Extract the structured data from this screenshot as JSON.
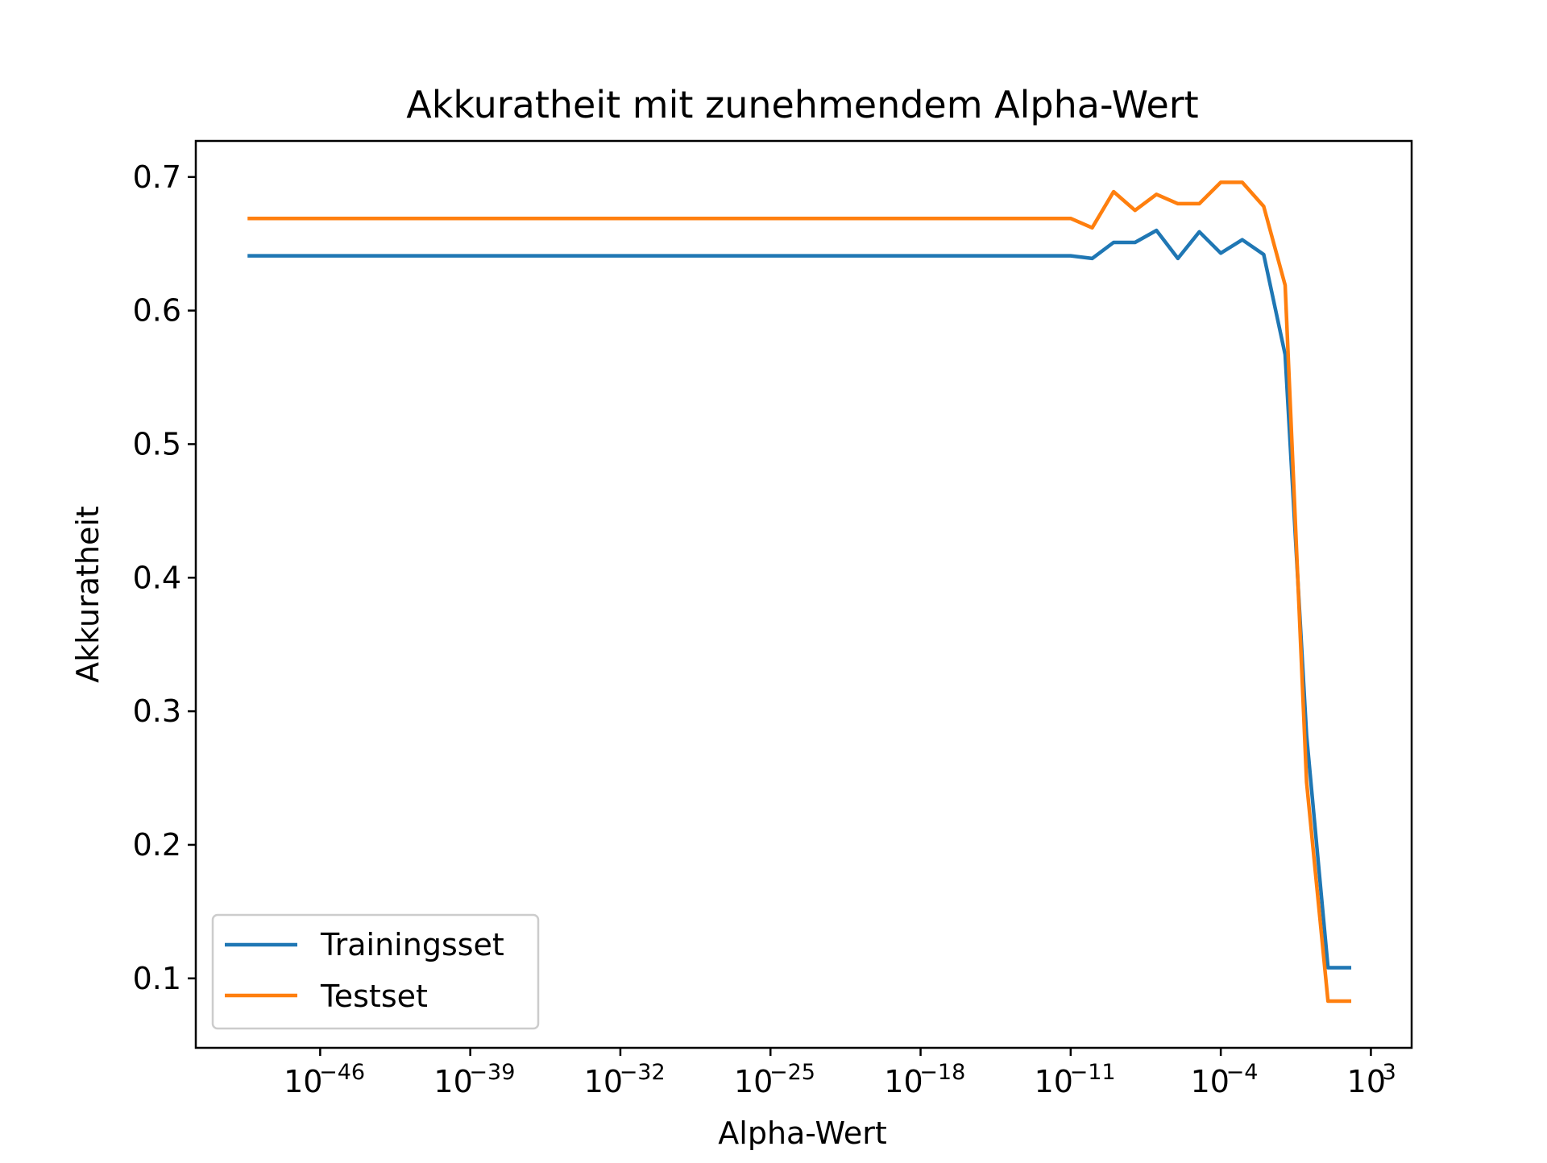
{
  "chart_data": {
    "type": "line",
    "title": "Akkuratheit mit zunehmendem Alpha-Wert",
    "xlabel": "Alpha-Wert",
    "ylabel": "Akkuratheit",
    "xscale": "log",
    "xlim_exponent": [
      -51.8,
      4.9
    ],
    "ylim": [
      0.048,
      0.727
    ],
    "xticks": [
      {
        "exponent": -46,
        "label_base": "10",
        "label_exp": "−46"
      },
      {
        "exponent": -39,
        "label_base": "10",
        "label_exp": "−39"
      },
      {
        "exponent": -32,
        "label_base": "10",
        "label_exp": "−32"
      },
      {
        "exponent": -25,
        "label_base": "10",
        "label_exp": "−25"
      },
      {
        "exponent": -18,
        "label_base": "10",
        "label_exp": "−18"
      },
      {
        "exponent": -11,
        "label_base": "10",
        "label_exp": "−11"
      },
      {
        "exponent": -4,
        "label_base": "10",
        "label_exp": "−4"
      },
      {
        "exponent": 3,
        "label_base": "10",
        "label_exp": "3"
      }
    ],
    "yticks": [
      {
        "value": 0.1,
        "label": "0.1"
      },
      {
        "value": 0.2,
        "label": "0.2"
      },
      {
        "value": 0.3,
        "label": "0.3"
      },
      {
        "value": 0.4,
        "label": "0.4"
      },
      {
        "value": 0.5,
        "label": "0.5"
      },
      {
        "value": 0.6,
        "label": "0.6"
      },
      {
        "value": 0.7,
        "label": "0.7"
      }
    ],
    "legend_position": "lower-left",
    "grid": false,
    "series": [
      {
        "name": "Trainingsset",
        "color": "#1f77b4",
        "points": [
          {
            "log10_alpha": -49.3,
            "y": 0.641
          },
          {
            "log10_alpha": -11.0,
            "y": 0.641
          },
          {
            "log10_alpha": -10.0,
            "y": 0.639
          },
          {
            "log10_alpha": -9.0,
            "y": 0.651
          },
          {
            "log10_alpha": -8.0,
            "y": 0.651
          },
          {
            "log10_alpha": -7.0,
            "y": 0.66
          },
          {
            "log10_alpha": -6.0,
            "y": 0.639
          },
          {
            "log10_alpha": -5.0,
            "y": 0.659
          },
          {
            "log10_alpha": -4.0,
            "y": 0.643
          },
          {
            "log10_alpha": -3.0,
            "y": 0.653
          },
          {
            "log10_alpha": -2.0,
            "y": 0.642
          },
          {
            "log10_alpha": -1.0,
            "y": 0.567
          },
          {
            "log10_alpha": 0.0,
            "y": 0.282
          },
          {
            "log10_alpha": 1.0,
            "y": 0.108
          },
          {
            "log10_alpha": 2.0,
            "y": 0.108
          }
        ]
      },
      {
        "name": "Testset",
        "color": "#ff7f0e",
        "points": [
          {
            "log10_alpha": -49.3,
            "y": 0.669
          },
          {
            "log10_alpha": -11.0,
            "y": 0.669
          },
          {
            "log10_alpha": -10.0,
            "y": 0.662
          },
          {
            "log10_alpha": -9.0,
            "y": 0.689
          },
          {
            "log10_alpha": -8.0,
            "y": 0.675
          },
          {
            "log10_alpha": -7.0,
            "y": 0.687
          },
          {
            "log10_alpha": -6.0,
            "y": 0.68
          },
          {
            "log10_alpha": -5.0,
            "y": 0.68
          },
          {
            "log10_alpha": -4.0,
            "y": 0.696
          },
          {
            "log10_alpha": -3.0,
            "y": 0.696
          },
          {
            "log10_alpha": -2.0,
            "y": 0.678
          },
          {
            "log10_alpha": -1.0,
            "y": 0.619
          },
          {
            "log10_alpha": 0.0,
            "y": 0.247
          },
          {
            "log10_alpha": 1.0,
            "y": 0.083
          },
          {
            "log10_alpha": 2.0,
            "y": 0.083
          }
        ]
      }
    ]
  }
}
